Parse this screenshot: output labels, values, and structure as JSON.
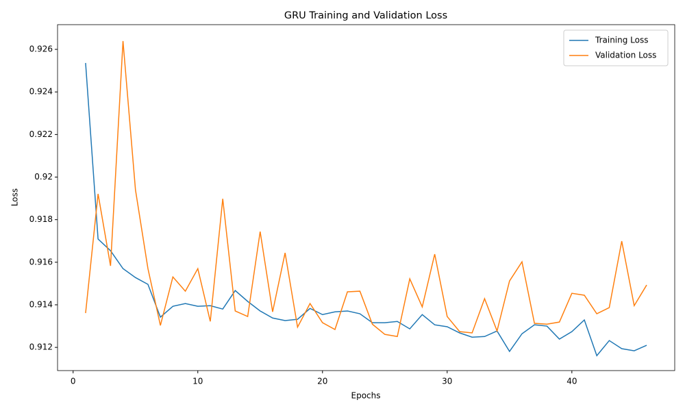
{
  "chart_data": {
    "type": "line",
    "title": "GRU Training and Validation Loss",
    "x_label": "Epochs",
    "y_label": "Loss",
    "x": [
      1,
      2,
      3,
      4,
      5,
      6,
      7,
      8,
      9,
      10,
      11,
      12,
      13,
      14,
      15,
      16,
      17,
      18,
      19,
      20,
      21,
      22,
      23,
      24,
      25,
      26,
      27,
      28,
      29,
      30,
      31,
      32,
      33,
      34,
      35,
      36,
      37,
      38,
      39,
      40,
      41,
      42,
      43,
      44,
      45,
      46
    ],
    "series": [
      {
        "name": "Training Loss",
        "color": "#1f77b4",
        "values": [
          0.92536,
          0.91709,
          0.91654,
          0.9157,
          0.91528,
          0.91496,
          0.91342,
          0.91393,
          0.91406,
          0.91393,
          0.91396,
          0.9138,
          0.91467,
          0.91416,
          0.91371,
          0.91338,
          0.91326,
          0.91332,
          0.91383,
          0.91354,
          0.91367,
          0.91371,
          0.91358,
          0.91316,
          0.91316,
          0.91322,
          0.91287,
          0.91354,
          0.91306,
          0.91297,
          0.91268,
          0.91248,
          0.91251,
          0.91277,
          0.91181,
          0.91264,
          0.91306,
          0.913,
          0.91239,
          0.91274,
          0.91329,
          0.91161,
          0.91232,
          0.91194,
          0.91184,
          0.9121
        ]
      },
      {
        "name": "Validation Loss",
        "color": "#ff7f0e",
        "values": [
          0.91361,
          0.91921,
          0.91583,
          0.92639,
          0.9194,
          0.9157,
          0.91303,
          0.91531,
          0.91464,
          0.9157,
          0.91322,
          0.91898,
          0.91371,
          0.91345,
          0.91744,
          0.91367,
          0.91644,
          0.91295,
          0.91406,
          0.91316,
          0.91284,
          0.91461,
          0.91464,
          0.91309,
          0.91261,
          0.91251,
          0.91522,
          0.9139,
          0.91638,
          0.91345,
          0.91274,
          0.91268,
          0.91429,
          0.91277,
          0.91512,
          0.91602,
          0.91313,
          0.91309,
          0.91319,
          0.91454,
          0.91445,
          0.91358,
          0.91387,
          0.91699,
          0.91396,
          0.91493
        ]
      }
    ],
    "xlim": [
      -1.25,
      48.25
    ],
    "xticks": [
      0,
      10,
      20,
      30,
      40
    ],
    "ylim": [
      0.91091,
      0.92716
    ],
    "yticks": [
      0.912,
      0.914,
      0.916,
      0.918,
      0.92,
      0.922,
      0.924,
      0.926
    ],
    "grid": false,
    "legend": "upper-right"
  }
}
